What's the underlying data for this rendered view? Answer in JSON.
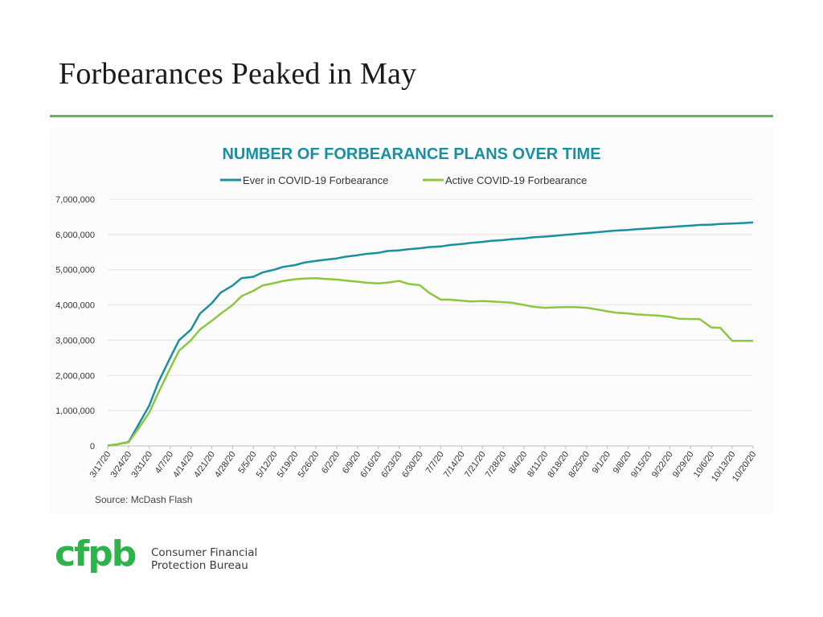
{
  "slide": {
    "title": "Forbearances Peaked in May",
    "accent_color": "#5cb85c"
  },
  "chart_data": {
    "type": "line",
    "title": "NUMBER OF FORBEARANCE PLANS OVER TIME",
    "title_color": "#1a8fa0",
    "source": "Source: McDash Flash",
    "legend_position": "top",
    "grid": true,
    "ylim": [
      0,
      7000000
    ],
    "yticks": [
      0,
      1000000,
      2000000,
      3000000,
      4000000,
      5000000,
      6000000,
      7000000
    ],
    "ytick_labels": [
      "0",
      "1,000,000",
      "2,000,000",
      "3,000,000",
      "4,000,000",
      "5,000,000",
      "6,000,000",
      "7,000,000"
    ],
    "xtick_labels": [
      "3/17/20",
      "3/24/20",
      "3/31/20",
      "4/7/20",
      "4/14/20",
      "4/21/20",
      "4/28/20",
      "5/5/20",
      "5/12/20",
      "5/19/20",
      "5/26/20",
      "6/2/20",
      "6/9/20",
      "6/16/20",
      "6/23/20",
      "6/30/20",
      "7/7/20",
      "7/14/20",
      "7/21/20",
      "7/28/20",
      "8/4/20",
      "8/11/20",
      "8/18/20",
      "8/25/20",
      "9/1/20",
      "9/8/20",
      "9/15/20",
      "9/22/20",
      "9/29/20",
      "10/6/20",
      "10/13/20",
      "10/20/20"
    ],
    "x": [
      "3/17/20",
      "3/20/20",
      "3/24/20",
      "3/27/20",
      "3/31/20",
      "4/3/20",
      "4/7/20",
      "4/10/20",
      "4/14/20",
      "4/17/20",
      "4/21/20",
      "4/24/20",
      "4/28/20",
      "5/1/20",
      "5/5/20",
      "5/8/20",
      "5/12/20",
      "5/15/20",
      "5/19/20",
      "5/22/20",
      "5/26/20",
      "5/29/20",
      "6/2/20",
      "6/5/20",
      "6/9/20",
      "6/12/20",
      "6/16/20",
      "6/19/20",
      "6/23/20",
      "6/26/20",
      "6/30/20",
      "7/3/20",
      "7/7/20",
      "7/10/20",
      "7/14/20",
      "7/17/20",
      "7/21/20",
      "7/24/20",
      "7/28/20",
      "7/31/20",
      "8/4/20",
      "8/7/20",
      "8/11/20",
      "8/14/20",
      "8/18/20",
      "8/21/20",
      "8/25/20",
      "8/28/20",
      "9/1/20",
      "9/4/20",
      "9/8/20",
      "9/11/20",
      "9/15/20",
      "9/18/20",
      "9/22/20",
      "9/25/20",
      "9/29/20",
      "10/2/20",
      "10/6/20",
      "10/9/20",
      "10/13/20",
      "10/16/20",
      "10/20/20"
    ],
    "series": [
      {
        "name": "Ever in COVID-19 Forbearance",
        "color": "#1a8fa0",
        "values": [
          10000,
          40000,
          110000,
          550000,
          1150000,
          1800000,
          2500000,
          3000000,
          3300000,
          3750000,
          4050000,
          4350000,
          4550000,
          4760000,
          4800000,
          4920000,
          5000000,
          5080000,
          5130000,
          5200000,
          5250000,
          5280000,
          5320000,
          5370000,
          5410000,
          5450000,
          5480000,
          5530000,
          5550000,
          5580000,
          5610000,
          5640000,
          5660000,
          5700000,
          5730000,
          5760000,
          5790000,
          5820000,
          5840000,
          5870000,
          5890000,
          5920000,
          5940000,
          5960000,
          5990000,
          6010000,
          6040000,
          6060000,
          6090000,
          6110000,
          6130000,
          6150000,
          6170000,
          6190000,
          6210000,
          6230000,
          6250000,
          6270000,
          6280000,
          6300000,
          6310000,
          6320000,
          6340000
        ]
      },
      {
        "name": "Active COVID-19 Forbearance",
        "color": "#8dc63f",
        "values": [
          10000,
          40000,
          100000,
          450000,
          950000,
          1500000,
          2200000,
          2700000,
          3000000,
          3300000,
          3550000,
          3750000,
          4000000,
          4250000,
          4400000,
          4550000,
          4620000,
          4680000,
          4730000,
          4750000,
          4760000,
          4740000,
          4720000,
          4690000,
          4660000,
          4630000,
          4610000,
          4630000,
          4680000,
          4600000,
          4560000,
          4350000,
          4150000,
          4150000,
          4120000,
          4100000,
          4110000,
          4100000,
          4080000,
          4060000,
          4000000,
          3950000,
          3920000,
          3930000,
          3940000,
          3940000,
          3920000,
          3880000,
          3820000,
          3780000,
          3760000,
          3730000,
          3710000,
          3700000,
          3660000,
          3610000,
          3600000,
          3600000,
          3360000,
          3350000,
          2980000,
          2980000,
          2980000
        ]
      }
    ]
  },
  "footer": {
    "logo_mark": "cfpb",
    "logo_line1": "Consumer Financial",
    "logo_line2": "Protection Bureau"
  }
}
